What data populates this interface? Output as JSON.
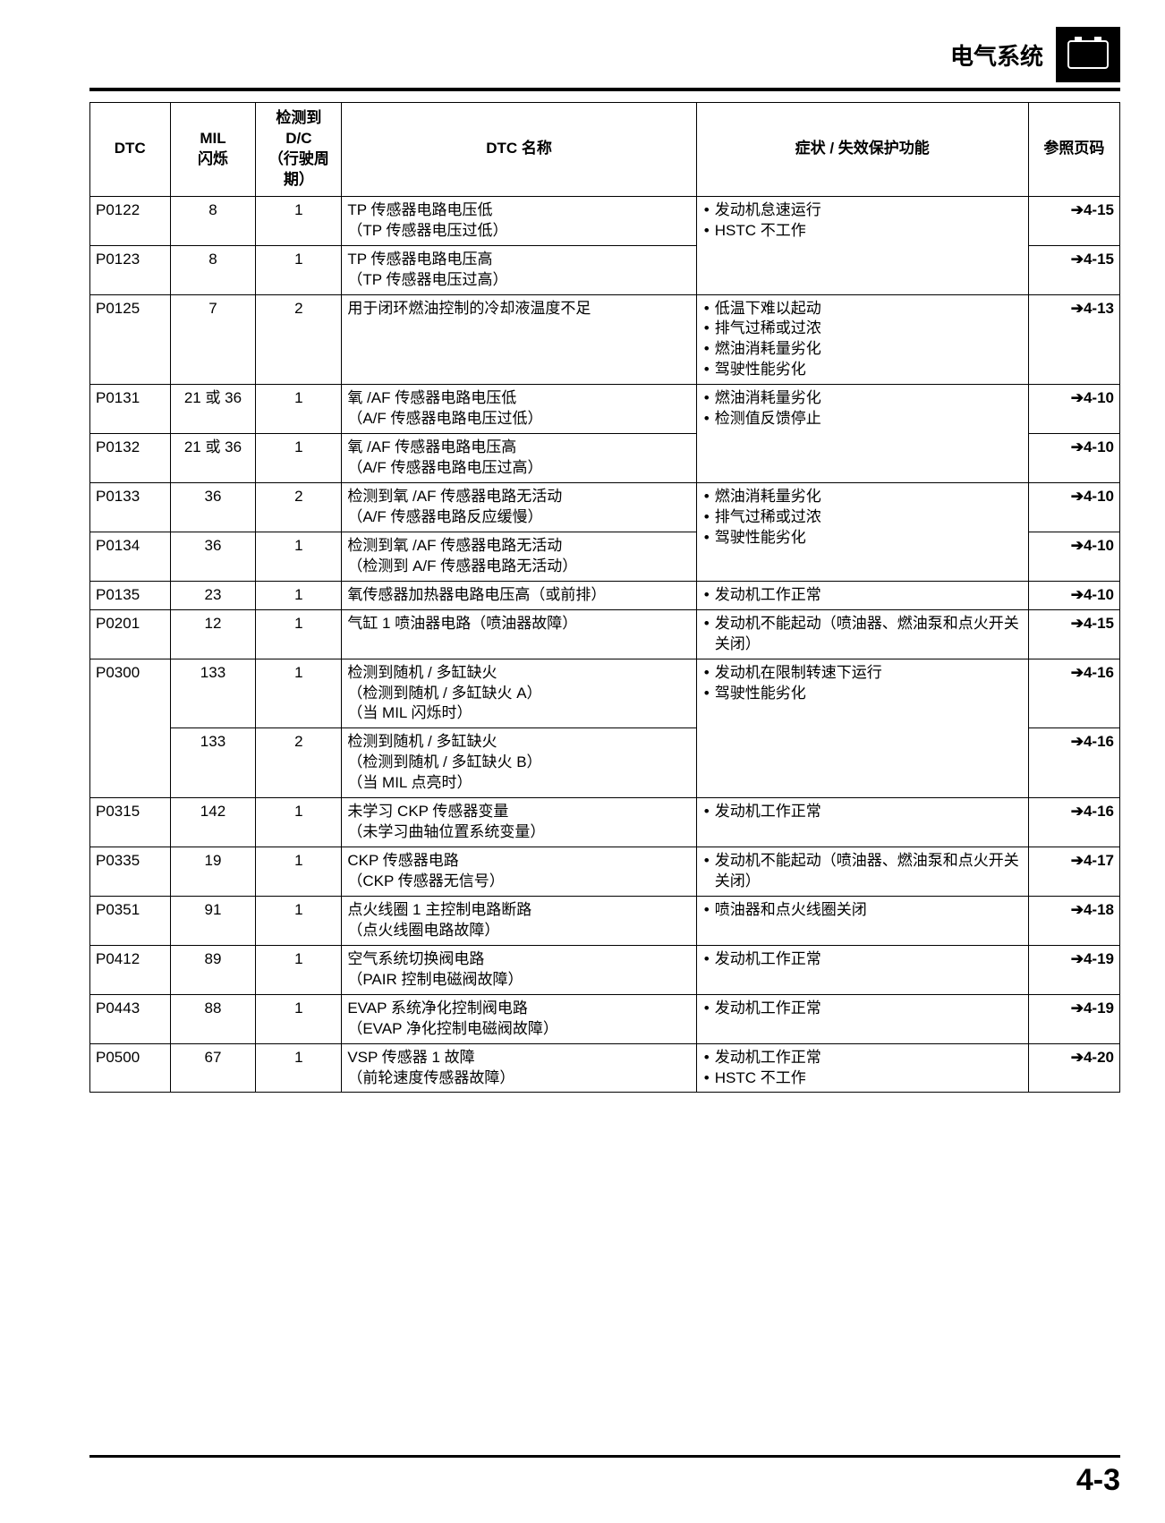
{
  "header": {
    "title": "电气系统"
  },
  "footer": {
    "page": "4-3"
  },
  "table": {
    "columns": {
      "dtc": "DTC",
      "mil": "MIL\n闪烁",
      "dc": "检测到\nD/C\n（行驶周期）",
      "name": "DTC 名称",
      "symptom": "症状 / 失效保护功能",
      "page": "参照页码"
    },
    "rows": [
      {
        "dtc": "P0122",
        "mil": "8",
        "dc": "1",
        "name": "TP 传感器电路电压低\n（TP 传感器电压过低）",
        "symptom": [
          "发动机怠速运行",
          "HSTC 不工作"
        ],
        "symptom_rowspan": 2,
        "page": "4-15"
      },
      {
        "dtc": "P0123",
        "mil": "8",
        "dc": "1",
        "name": "TP 传感器电路电压高\n（TP 传感器电压过高）",
        "page": "4-15"
      },
      {
        "dtc": "P0125",
        "mil": "7",
        "dc": "2",
        "name": "用于闭环燃油控制的冷却液温度不足",
        "symptom": [
          "低温下难以起动",
          "排气过稀或过浓",
          "燃油消耗量劣化",
          "驾驶性能劣化"
        ],
        "page": "4-13"
      },
      {
        "dtc": "P0131",
        "mil": "21 或 36",
        "dc": "1",
        "name": "氧 /AF 传感器电路电压低\n（A/F 传感器电路电压过低）",
        "symptom": [
          "燃油消耗量劣化",
          "检测值反馈停止"
        ],
        "symptom_rowspan": 2,
        "page": "4-10"
      },
      {
        "dtc": "P0132",
        "mil": "21 或 36",
        "dc": "1",
        "name": "氧 /AF 传感器电路电压高\n（A/F 传感器电路电压过高）",
        "page": "4-10"
      },
      {
        "dtc": "P0133",
        "mil": "36",
        "dc": "2",
        "name": "检测到氧 /AF 传感器电路无活动\n（A/F 传感器电路反应缓慢）",
        "symptom": [
          "燃油消耗量劣化",
          "排气过稀或过浓",
          "驾驶性能劣化"
        ],
        "symptom_rowspan": 2,
        "page": "4-10"
      },
      {
        "dtc": "P0134",
        "mil": "36",
        "dc": "1",
        "name": "检测到氧 /AF 传感器电路无活动\n（检测到 A/F 传感器电路无活动）",
        "page": "4-10"
      },
      {
        "dtc": "P0135",
        "mil": "23",
        "dc": "1",
        "name": "氧传感器加热器电路电压高（或前排）",
        "symptom": [
          "发动机工作正常"
        ],
        "page": "4-10"
      },
      {
        "dtc": "P0201",
        "mil": "12",
        "dc": "1",
        "name": "气缸 1 喷油器电路（喷油器故障）",
        "symptom": [
          "发动机不能起动（喷油器、燃油泵和点火开关关闭）"
        ],
        "page": "4-15"
      },
      {
        "dtc": "P0300",
        "dtc_rowspan": 2,
        "mil": "133",
        "dc": "1",
        "name": "检测到随机 / 多缸缺火\n（检测到随机 / 多缸缺火 A）\n（当 MIL 闪烁时）",
        "symptom": [
          "发动机在限制转速下运行",
          "驾驶性能劣化"
        ],
        "symptom_rowspan": 2,
        "page": "4-16"
      },
      {
        "mil": "133",
        "dc": "2",
        "name": "检测到随机 / 多缸缺火\n（检测到随机 / 多缸缺火 B）\n（当 MIL 点亮时）",
        "page": "4-16"
      },
      {
        "dtc": "P0315",
        "mil": "142",
        "dc": "1",
        "name": "未学习 CKP 传感器变量\n（未学习曲轴位置系统变量）",
        "symptom": [
          "发动机工作正常"
        ],
        "page": "4-16"
      },
      {
        "dtc": "P0335",
        "mil": "19",
        "dc": "1",
        "name": "CKP 传感器电路\n（CKP 传感器无信号）",
        "symptom": [
          "发动机不能起动（喷油器、燃油泵和点火开关关闭）"
        ],
        "page": "4-17"
      },
      {
        "dtc": "P0351",
        "mil": "91",
        "dc": "1",
        "name": "点火线圈 1 主控制电路断路\n（点火线圈电路故障）",
        "symptom": [
          "喷油器和点火线圈关闭"
        ],
        "page": "4-18"
      },
      {
        "dtc": "P0412",
        "mil": "89",
        "dc": "1",
        "name": "空气系统切换阀电路\n（PAIR 控制电磁阀故障）",
        "symptom": [
          "发动机工作正常"
        ],
        "page": "4-19"
      },
      {
        "dtc": "P0443",
        "mil": "88",
        "dc": "1",
        "name": "EVAP 系统净化控制阀电路\n（EVAP 净化控制电磁阀故障）",
        "symptom": [
          "发动机工作正常"
        ],
        "page": "4-19"
      },
      {
        "dtc": "P0500",
        "mil": "67",
        "dc": "1",
        "name": "VSP 传感器 1 故障\n（前轮速度传感器故障）",
        "symptom": [
          "发动机工作正常",
          "HSTC 不工作"
        ],
        "page": "4-20"
      }
    ]
  }
}
